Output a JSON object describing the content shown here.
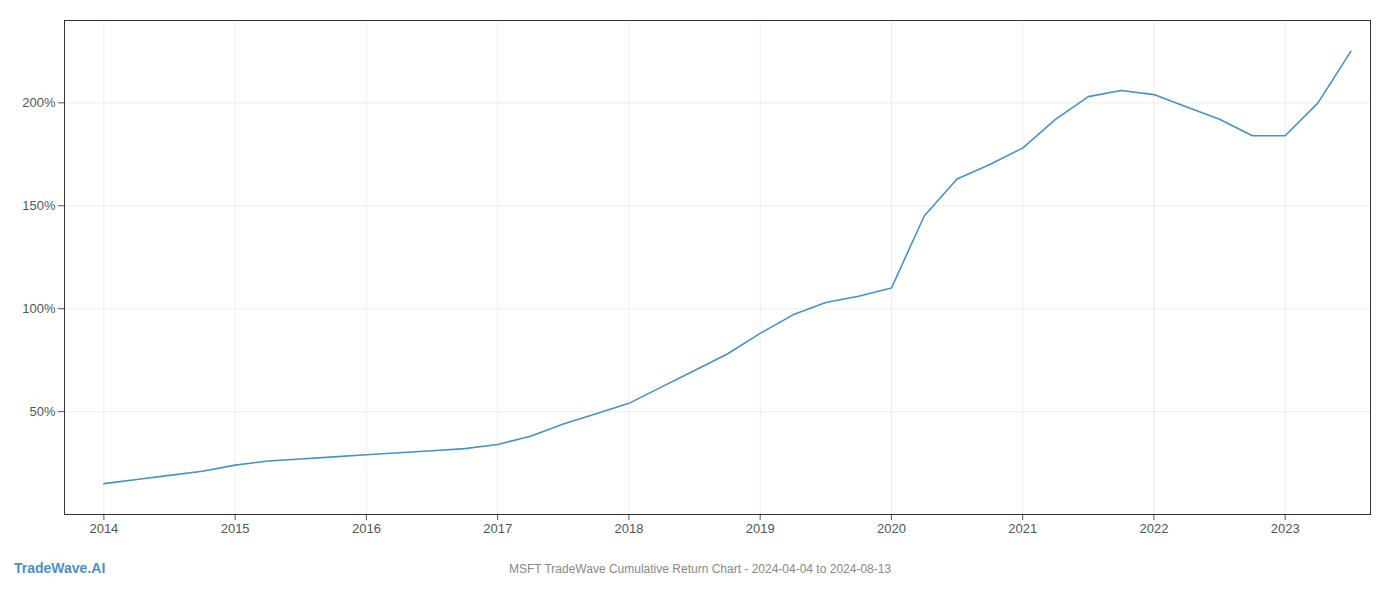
{
  "chart_data": {
    "type": "line",
    "title": "MSFT TradeWave Cumulative Return Chart - 2024-04-04 to 2024-08-13",
    "annotations": [
      "TradeWave.AI"
    ],
    "x": [
      2014.0,
      2014.25,
      2014.5,
      2014.75,
      2015.0,
      2015.25,
      2015.5,
      2015.75,
      2016.0,
      2016.25,
      2016.5,
      2016.75,
      2017.0,
      2017.25,
      2017.5,
      2017.75,
      2018.0,
      2018.25,
      2018.5,
      2018.75,
      2019.0,
      2019.25,
      2019.5,
      2019.75,
      2020.0,
      2020.25,
      2020.5,
      2020.75,
      2021.0,
      2021.25,
      2021.5,
      2021.75,
      2022.0,
      2022.25,
      2022.5,
      2022.75,
      2023.0,
      2023.25,
      2023.5
    ],
    "values": [
      15,
      17,
      19,
      21,
      24,
      26,
      27,
      28,
      29,
      30,
      31,
      32,
      34,
      38,
      44,
      49,
      54,
      62,
      70,
      78,
      88,
      97,
      103,
      106,
      110,
      145,
      163,
      170,
      178,
      192,
      203,
      206,
      204,
      198,
      192,
      184,
      184,
      200,
      225
    ],
    "color": "#4a90c4",
    "xlim": [
      2013.7,
      2023.65
    ],
    "xticks": [
      2014,
      2015,
      2016,
      2017,
      2018,
      2019,
      2020,
      2021,
      2022,
      2023
    ],
    "ylim": [
      0,
      240
    ],
    "yticks": [
      {
        "value": 50,
        "label": "50%"
      },
      {
        "value": 100,
        "label": "100%"
      },
      {
        "value": 150,
        "label": "150%"
      },
      {
        "value": 200,
        "label": "200%"
      }
    ],
    "grid": true
  }
}
